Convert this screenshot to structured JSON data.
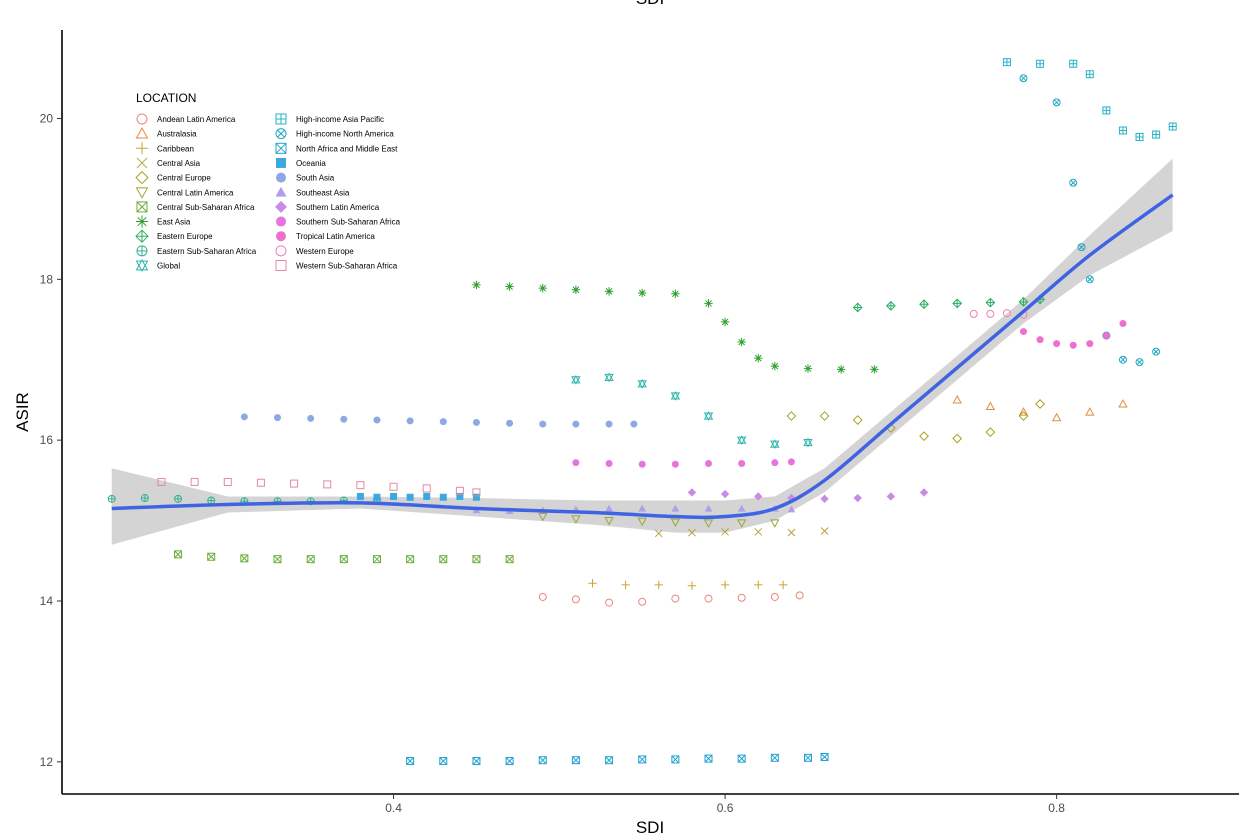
{
  "chart_data": {
    "type": "scatter",
    "title": "",
    "top_label": "SDI",
    "xlabel": "SDI",
    "ylabel": "ASIR",
    "xlim": [
      0.2,
      0.91
    ],
    "ylim": [
      11.6,
      21.1
    ],
    "x_ticks": [
      0.4,
      0.6,
      0.8
    ],
    "y_ticks": [
      12,
      14,
      16,
      18,
      20
    ],
    "grid": false,
    "legend_title": "LOCATION",
    "legend_position": "top-left",
    "series": [
      {
        "name": "Andean Latin America",
        "color": "#E7877D",
        "shape": "circle-open",
        "x": [
          0.49,
          0.51,
          0.53,
          0.55,
          0.57,
          0.59,
          0.61,
          0.63,
          0.645
        ],
        "y": [
          14.05,
          14.02,
          13.98,
          13.99,
          14.03,
          14.03,
          14.04,
          14.05,
          14.07
        ]
      },
      {
        "name": "Australasia",
        "color": "#E08B3C",
        "shape": "triangle-open",
        "x": [
          0.74,
          0.76,
          0.78,
          0.8,
          0.82,
          0.84
        ],
        "y": [
          16.5,
          16.42,
          16.35,
          16.28,
          16.35,
          16.45
        ]
      },
      {
        "name": "Caribbean",
        "color": "#C9A532",
        "shape": "plus",
        "x": [
          0.52,
          0.54,
          0.56,
          0.58,
          0.6,
          0.62,
          0.635
        ],
        "y": [
          14.22,
          14.2,
          14.2,
          14.19,
          14.2,
          14.2,
          14.2
        ]
      },
      {
        "name": "Central Asia",
        "color": "#B3A33C",
        "shape": "x",
        "x": [
          0.56,
          0.58,
          0.6,
          0.62,
          0.64,
          0.66
        ],
        "y": [
          14.84,
          14.85,
          14.86,
          14.86,
          14.85,
          14.87
        ]
      },
      {
        "name": "Central Europe",
        "color": "#A6A21F",
        "shape": "diamond-open",
        "x": [
          0.64,
          0.66,
          0.68,
          0.7,
          0.72,
          0.74,
          0.76,
          0.78,
          0.79
        ],
        "y": [
          16.3,
          16.3,
          16.25,
          16.15,
          16.05,
          16.02,
          16.1,
          16.3,
          16.45
        ]
      },
      {
        "name": "Central Latin America",
        "color": "#9AA73A",
        "shape": "triangle-down-open",
        "x": [
          0.49,
          0.51,
          0.53,
          0.55,
          0.57,
          0.59,
          0.61,
          0.63
        ],
        "y": [
          15.05,
          15.02,
          15.0,
          14.99,
          14.98,
          14.97,
          14.97,
          14.97
        ]
      },
      {
        "name": "Central Sub-Saharan Africa",
        "color": "#6AAD3A",
        "shape": "square-x",
        "x": [
          0.27,
          0.29,
          0.31,
          0.33,
          0.35,
          0.37,
          0.39,
          0.41,
          0.43,
          0.45,
          0.47
        ],
        "y": [
          14.58,
          14.55,
          14.53,
          14.52,
          14.52,
          14.52,
          14.52,
          14.52,
          14.52,
          14.52,
          14.52
        ]
      },
      {
        "name": "East Asia",
        "color": "#2CA02C",
        "shape": "asterisk",
        "x": [
          0.45,
          0.47,
          0.49,
          0.51,
          0.53,
          0.55,
          0.57,
          0.59,
          0.6,
          0.61,
          0.62,
          0.63,
          0.65,
          0.67,
          0.69
        ],
        "y": [
          17.93,
          17.91,
          17.89,
          17.87,
          17.85,
          17.83,
          17.82,
          17.7,
          17.47,
          17.22,
          17.02,
          16.92,
          16.89,
          16.88,
          16.88
        ]
      },
      {
        "name": "Eastern Europe",
        "color": "#2BAE66",
        "shape": "diamond-plus",
        "x": [
          0.68,
          0.7,
          0.72,
          0.74,
          0.76,
          0.78,
          0.79
        ],
        "y": [
          17.65,
          17.67,
          17.69,
          17.7,
          17.71,
          17.72,
          17.75
        ]
      },
      {
        "name": "Eastern Sub-Saharan Africa",
        "color": "#33B291",
        "shape": "circle-plus",
        "x": [
          0.23,
          0.25,
          0.27,
          0.29,
          0.31,
          0.33,
          0.35,
          0.37,
          0.39
        ],
        "y": [
          15.27,
          15.28,
          15.27,
          15.25,
          15.24,
          15.24,
          15.24,
          15.25,
          15.26
        ]
      },
      {
        "name": "Global",
        "color": "#2BB5A8",
        "shape": "star-of-david",
        "x": [
          0.51,
          0.53,
          0.55,
          0.57,
          0.59,
          0.61,
          0.63,
          0.65
        ],
        "y": [
          16.75,
          16.78,
          16.7,
          16.55,
          16.3,
          16.0,
          15.95,
          15.97
        ]
      },
      {
        "name": "High-income Asia Pacific",
        "color": "#25B4C7",
        "shape": "square-plus",
        "x": [
          0.77,
          0.79,
          0.81,
          0.82,
          0.83,
          0.84,
          0.85,
          0.86,
          0.87
        ],
        "y": [
          20.7,
          20.68,
          20.68,
          20.55,
          20.1,
          19.85,
          19.77,
          19.8,
          19.9
        ]
      },
      {
        "name": "High-income North America",
        "color": "#20A6C4",
        "shape": "circle-x",
        "x": [
          0.78,
          0.8,
          0.81,
          0.815,
          0.82,
          0.83,
          0.84,
          0.85,
          0.86
        ],
        "y": [
          20.5,
          20.2,
          19.2,
          18.4,
          18.0,
          17.3,
          17.0,
          16.97,
          17.1
        ]
      },
      {
        "name": "North Africa and Middle East",
        "color": "#21A1D0",
        "shape": "square-x",
        "x": [
          0.41,
          0.43,
          0.45,
          0.47,
          0.49,
          0.51,
          0.53,
          0.55,
          0.57,
          0.59,
          0.61,
          0.63,
          0.65,
          0.66
        ],
        "y": [
          12.01,
          12.01,
          12.01,
          12.01,
          12.02,
          12.02,
          12.02,
          12.03,
          12.03,
          12.04,
          12.04,
          12.05,
          12.05,
          12.06
        ]
      },
      {
        "name": "Oceania",
        "color": "#3AA9E0",
        "shape": "square-filled",
        "x": [
          0.38,
          0.39,
          0.4,
          0.41,
          0.42,
          0.43,
          0.44,
          0.45
        ],
        "y": [
          15.3,
          15.29,
          15.3,
          15.29,
          15.3,
          15.29,
          15.3,
          15.29
        ]
      },
      {
        "name": "South Asia",
        "color": "#8EA8E6",
        "shape": "circle-filled",
        "x": [
          0.31,
          0.33,
          0.35,
          0.37,
          0.39,
          0.41,
          0.43,
          0.45,
          0.47,
          0.49,
          0.51,
          0.53,
          0.545
        ],
        "y": [
          16.29,
          16.28,
          16.27,
          16.26,
          16.25,
          16.24,
          16.23,
          16.22,
          16.21,
          16.2,
          16.2,
          16.2,
          16.2
        ]
      },
      {
        "name": "Southeast Asia",
        "color": "#B39CE8",
        "shape": "triangle-filled",
        "x": [
          0.45,
          0.47,
          0.49,
          0.51,
          0.53,
          0.55,
          0.57,
          0.59,
          0.61,
          0.63,
          0.64
        ],
        "y": [
          15.13,
          15.12,
          15.13,
          15.14,
          15.15,
          15.15,
          15.15,
          15.15,
          15.15,
          15.15,
          15.14
        ]
      },
      {
        "name": "Southern Latin America",
        "color": "#C88BE6",
        "shape": "diamond-filled",
        "x": [
          0.58,
          0.6,
          0.62,
          0.64,
          0.66,
          0.68,
          0.7,
          0.72
        ],
        "y": [
          15.35,
          15.33,
          15.3,
          15.28,
          15.27,
          15.28,
          15.3,
          15.35
        ]
      },
      {
        "name": "Southern Sub-Saharan Africa",
        "color": "#E673DE",
        "shape": "circle-filled",
        "x": [
          0.51,
          0.53,
          0.55,
          0.57,
          0.59,
          0.61,
          0.63,
          0.64
        ],
        "y": [
          15.72,
          15.71,
          15.7,
          15.7,
          15.71,
          15.71,
          15.72,
          15.73
        ]
      },
      {
        "name": "Tropical Latin America",
        "color": "#EF6FD0",
        "shape": "circle-filled",
        "x": [
          0.78,
          0.79,
          0.8,
          0.81,
          0.82,
          0.83,
          0.84
        ],
        "y": [
          17.35,
          17.25,
          17.2,
          17.18,
          17.2,
          17.3,
          17.45
        ]
      },
      {
        "name": "Western Europe",
        "color": "#F07FB8",
        "shape": "circle-open",
        "x": [
          0.75,
          0.76,
          0.77,
          0.78
        ],
        "y": [
          17.57,
          17.57,
          17.58,
          17.56
        ]
      },
      {
        "name": "Western Sub-Saharan Africa",
        "color": "#E289A4",
        "shape": "square-open",
        "x": [
          0.26,
          0.28,
          0.3,
          0.32,
          0.34,
          0.36,
          0.38,
          0.4,
          0.42,
          0.44,
          0.45
        ],
        "y": [
          15.48,
          15.48,
          15.48,
          15.47,
          15.46,
          15.45,
          15.44,
          15.42,
          15.4,
          15.37,
          15.35
        ]
      }
    ],
    "smooth_fit": {
      "color": "#3E63E3",
      "band_color": "#B8B8B8",
      "x": [
        0.23,
        0.3,
        0.38,
        0.45,
        0.52,
        0.57,
        0.6,
        0.63,
        0.66,
        0.7,
        0.74,
        0.78,
        0.82,
        0.87
      ],
      "y": [
        15.15,
        15.2,
        15.22,
        15.15,
        15.1,
        15.05,
        15.05,
        15.15,
        15.5,
        16.2,
        16.9,
        17.6,
        18.3,
        19.05
      ],
      "lower": [
        14.7,
        15.1,
        15.15,
        15.05,
        14.95,
        14.85,
        14.85,
        15.0,
        15.35,
        16.05,
        16.75,
        17.45,
        18.05,
        18.6
      ],
      "upper": [
        15.65,
        15.3,
        15.3,
        15.28,
        15.25,
        15.25,
        15.25,
        15.3,
        15.65,
        16.35,
        17.05,
        17.75,
        18.55,
        19.5
      ]
    }
  }
}
